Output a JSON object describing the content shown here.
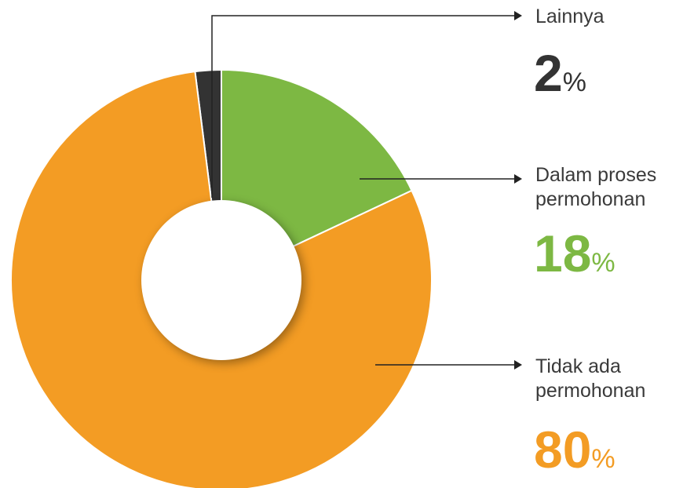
{
  "chart_data": {
    "type": "donut",
    "categories": [
      "Lainnya",
      "Dalam proses\npermohonan",
      "Tidak ada\npermohonan"
    ],
    "values": [
      2,
      18,
      80
    ],
    "colors": [
      "#333333",
      "#7db843",
      "#f39c24"
    ],
    "unit": "%"
  }
}
